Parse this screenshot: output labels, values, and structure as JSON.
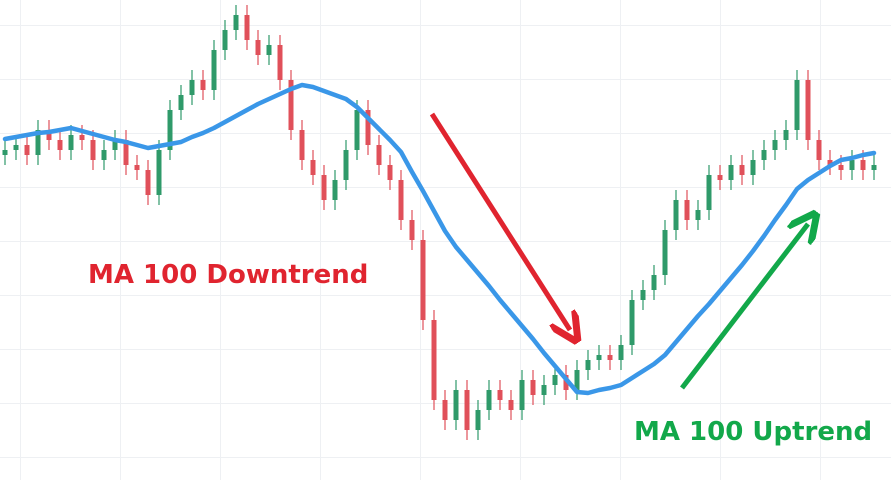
{
  "chart_data": {
    "type": "candlestick",
    "ylim": [
      0,
      480
    ],
    "grid": true,
    "candles": {
      "up_color": "#2f9a6a",
      "down_color": "#e0505a",
      "open": [
        325,
        330,
        335,
        325,
        350,
        340,
        330,
        345,
        340,
        320,
        330,
        340,
        315,
        310,
        285,
        330,
        370,
        385,
        400,
        390,
        430,
        450,
        465,
        440,
        425,
        435,
        400,
        350,
        320,
        305,
        280,
        300,
        330,
        370,
        335,
        315,
        300,
        260,
        240,
        160,
        80,
        60,
        90,
        50,
        70,
        90,
        80,
        70,
        100,
        85,
        95,
        105,
        90,
        110,
        120,
        125,
        120,
        135,
        180,
        190,
        205,
        250,
        280,
        260,
        270,
        305,
        300,
        315,
        305,
        320,
        330,
        340,
        350,
        400,
        340,
        320,
        315,
        310,
        320,
        310
      ],
      "high": [
        340,
        345,
        345,
        360,
        360,
        350,
        355,
        355,
        350,
        340,
        350,
        350,
        325,
        320,
        340,
        380,
        395,
        410,
        410,
        440,
        460,
        475,
        475,
        450,
        445,
        445,
        410,
        360,
        330,
        315,
        310,
        340,
        380,
        380,
        345,
        325,
        310,
        270,
        250,
        170,
        90,
        100,
        100,
        80,
        100,
        100,
        90,
        110,
        110,
        105,
        115,
        115,
        120,
        130,
        135,
        135,
        145,
        190,
        200,
        215,
        260,
        290,
        290,
        280,
        315,
        315,
        325,
        325,
        330,
        340,
        350,
        360,
        410,
        410,
        350,
        330,
        325,
        330,
        330,
        325
      ],
      "low": [
        315,
        320,
        315,
        315,
        330,
        320,
        320,
        330,
        310,
        310,
        320,
        305,
        300,
        275,
        275,
        320,
        360,
        375,
        380,
        380,
        420,
        440,
        430,
        415,
        415,
        390,
        340,
        310,
        295,
        270,
        270,
        290,
        320,
        325,
        305,
        290,
        250,
        230,
        150,
        70,
        50,
        50,
        40,
        40,
        60,
        70,
        60,
        60,
        75,
        75,
        85,
        80,
        80,
        100,
        110,
        110,
        110,
        125,
        170,
        180,
        195,
        240,
        250,
        250,
        260,
        290,
        290,
        295,
        295,
        310,
        320,
        330,
        340,
        330,
        310,
        305,
        300,
        300,
        300,
        300
      ],
      "close": [
        330,
        335,
        325,
        350,
        340,
        330,
        345,
        340,
        320,
        330,
        340,
        315,
        310,
        285,
        330,
        370,
        385,
        400,
        390,
        430,
        450,
        465,
        440,
        425,
        435,
        400,
        350,
        320,
        305,
        280,
        300,
        330,
        370,
        335,
        315,
        300,
        260,
        240,
        160,
        80,
        60,
        90,
        50,
        70,
        90,
        80,
        70,
        100,
        85,
        95,
        105,
        90,
        110,
        120,
        125,
        120,
        135,
        180,
        190,
        205,
        250,
        280,
        260,
        270,
        305,
        300,
        315,
        305,
        320,
        330,
        340,
        350,
        400,
        340,
        320,
        315,
        310,
        320,
        310,
        315
      ]
    },
    "lines": [
      {
        "color": "#3a97e8",
        "values": [
          341,
          343,
          345,
          347,
          348,
          350,
          352,
          349,
          346,
          343,
          340,
          338,
          335,
          332,
          334,
          336,
          338,
          343,
          347,
          352,
          358,
          364,
          370,
          376,
          381,
          386,
          391,
          395,
          393,
          389,
          385,
          381,
          373,
          362,
          351,
          340,
          328,
          308,
          289,
          269,
          249,
          233,
          220,
          207,
          194,
          180,
          167,
          154,
          141,
          127,
          114,
          101,
          88,
          87,
          90,
          92,
          95,
          102,
          109,
          116,
          125,
          138,
          151,
          164,
          176,
          189,
          202,
          215,
          229,
          244,
          260,
          275,
          291,
          300,
          307,
          314,
          320,
          322,
          325,
          327
        ]
      }
    ],
    "annotations": [
      {
        "text": "MA 100 Downtrend",
        "color": "#e0242f"
      },
      {
        "text": "MA 100 Uptrend",
        "color": "#12a84a"
      }
    ]
  }
}
